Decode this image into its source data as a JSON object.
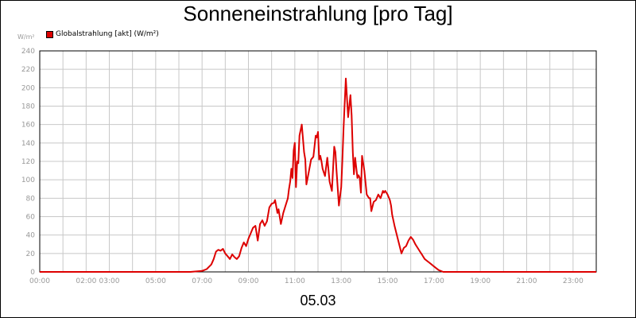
{
  "chart_data": {
    "type": "line",
    "title": "Sonneneinstrahlung [pro Tag]",
    "ylabel": "W/m²",
    "xlabel": "05.03",
    "ylim": [
      0,
      240
    ],
    "y_ticks": [
      0,
      20,
      40,
      60,
      80,
      100,
      120,
      140,
      160,
      180,
      200,
      220,
      240
    ],
    "x_range_hours": [
      0,
      24
    ],
    "x_tick_labels": [
      {
        "h": 0,
        "label": "00:00"
      },
      {
        "h": 2,
        "label": "02:00"
      },
      {
        "h": 3,
        "label": "03:00"
      },
      {
        "h": 5,
        "label": "05:00"
      },
      {
        "h": 7,
        "label": "07:00"
      },
      {
        "h": 9,
        "label": "09:00"
      },
      {
        "h": 11,
        "label": "11:00"
      },
      {
        "h": 13,
        "label": "13:00"
      },
      {
        "h": 15,
        "label": "15:00"
      },
      {
        "h": 17,
        "label": "17:00"
      },
      {
        "h": 19,
        "label": "19:00"
      },
      {
        "h": 21,
        "label": "21:00"
      },
      {
        "h": 23,
        "label": "23:00"
      }
    ],
    "grid": true,
    "legend_position": "top-left",
    "series": [
      {
        "name": "Globalstrahlung [akt] (W/m²)",
        "color": "#dd0000",
        "x": [
          0,
          6.5,
          7.0,
          7.2,
          7.4,
          7.5,
          7.6,
          7.7,
          7.8,
          7.9,
          8.0,
          8.1,
          8.2,
          8.3,
          8.4,
          8.5,
          8.6,
          8.7,
          8.8,
          8.9,
          9.0,
          9.1,
          9.2,
          9.3,
          9.4,
          9.5,
          9.6,
          9.7,
          9.8,
          9.9,
          10.0,
          10.1,
          10.15,
          10.25,
          10.3,
          10.4,
          10.5,
          10.6,
          10.7,
          10.75,
          10.8,
          10.85,
          10.9,
          10.95,
          11.0,
          11.05,
          11.1,
          11.15,
          11.2,
          11.3,
          11.4,
          11.45,
          11.5,
          11.6,
          11.7,
          11.8,
          11.9,
          11.95,
          12.0,
          12.05,
          12.1,
          12.15,
          12.2,
          12.3,
          12.4,
          12.5,
          12.6,
          12.7,
          12.75,
          12.8,
          12.9,
          13.0,
          13.05,
          13.1,
          13.2,
          13.3,
          13.4,
          13.45,
          13.5,
          13.55,
          13.6,
          13.7,
          13.75,
          13.8,
          13.85,
          13.9,
          14.0,
          14.1,
          14.2,
          14.25,
          14.3,
          14.4,
          14.5,
          14.6,
          14.7,
          14.8,
          14.85,
          14.9,
          15.0,
          15.1,
          15.15,
          15.2,
          15.3,
          15.4,
          15.5,
          15.6,
          15.7,
          15.8,
          15.9,
          16.0,
          16.1,
          16.2,
          16.3,
          16.4,
          16.5,
          16.6,
          16.7,
          16.8,
          16.9,
          17.0,
          17.1,
          17.2,
          17.4,
          17.6,
          17.8,
          18.0,
          18.3,
          24.0
        ],
        "y": [
          0,
          0,
          1,
          3,
          8,
          14,
          22,
          24,
          23,
          25,
          20,
          17,
          14,
          19,
          16,
          14,
          17,
          26,
          32,
          28,
          36,
          42,
          48,
          50,
          34,
          52,
          56,
          50,
          55,
          70,
          74,
          75,
          78,
          64,
          68,
          52,
          64,
          72,
          80,
          90,
          98,
          112,
          102,
          132,
          140,
          92,
          120,
          118,
          148,
          160,
          130,
          122,
          95,
          108,
          122,
          125,
          148,
          146,
          152,
          122,
          126,
          120,
          112,
          104,
          124,
          98,
          88,
          136,
          130,
          110,
          72,
          92,
          120,
          155,
          210,
          168,
          192,
          170,
          130,
          106,
          124,
          102,
          105,
          102,
          86,
          126,
          110,
          84,
          80,
          80,
          66,
          76,
          78,
          84,
          80,
          88,
          86,
          88,
          84,
          78,
          72,
          62,
          50,
          40,
          30,
          20,
          26,
          28,
          34,
          38,
          35,
          30,
          26,
          22,
          18,
          14,
          12,
          10,
          8,
          6,
          4,
          2,
          0,
          0,
          0,
          0,
          0,
          0
        ]
      }
    ]
  }
}
